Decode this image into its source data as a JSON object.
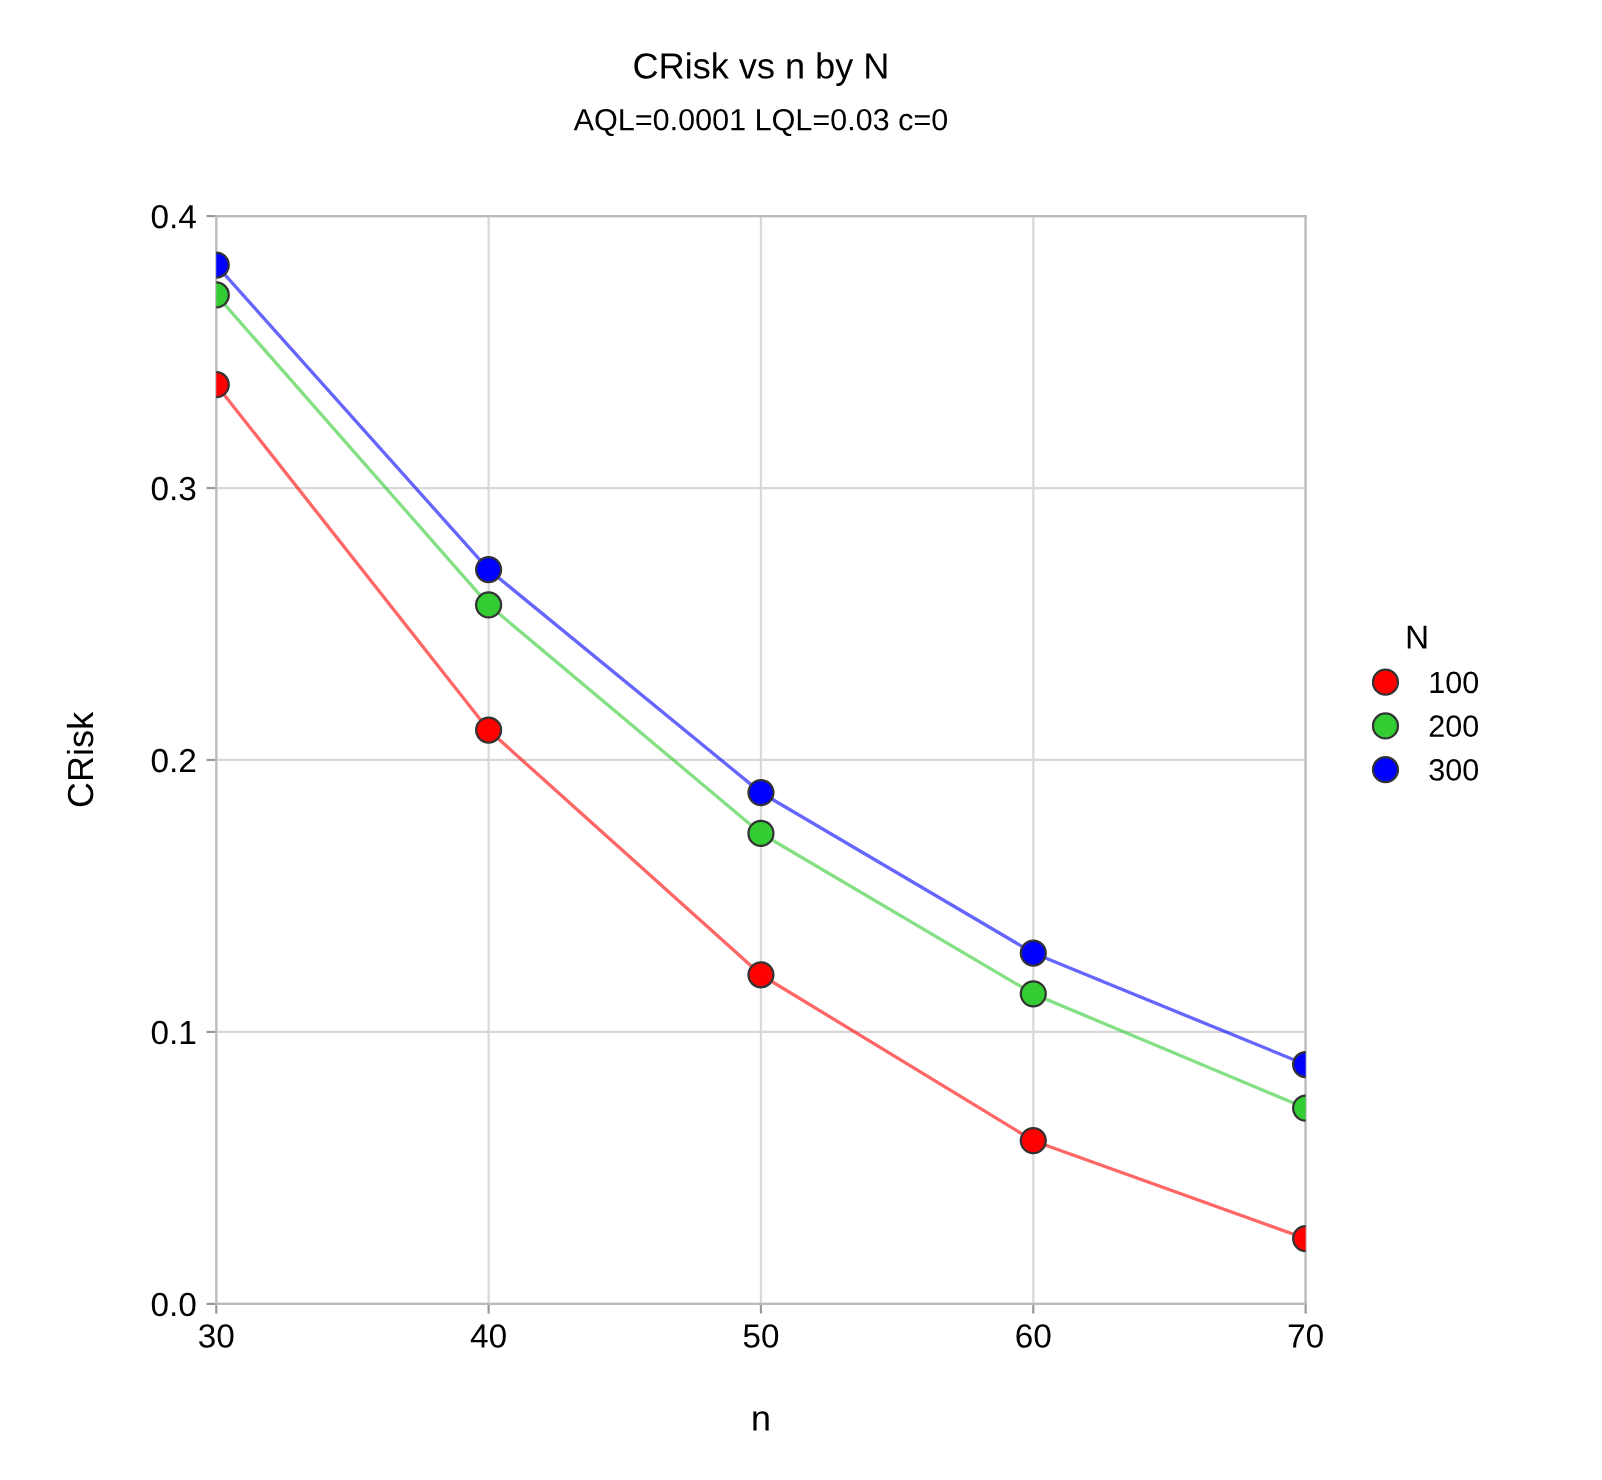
{
  "chart_data": {
    "type": "line",
    "title": "CRisk vs n by N",
    "subtitle": "AQL=0.0001 LQL=0.03 c=0",
    "xlabel": "n",
    "ylabel": "CRisk",
    "legend_title": "N",
    "x": [
      30,
      40,
      50,
      60,
      70
    ],
    "series": [
      {
        "name": "100",
        "color": "#ff0000",
        "values": [
          0.338,
          0.211,
          0.121,
          0.06,
          0.024
        ]
      },
      {
        "name": "200",
        "color": "#33cc33",
        "values": [
          0.371,
          0.257,
          0.173,
          0.114,
          0.072
        ]
      },
      {
        "name": "300",
        "color": "#0000ff",
        "values": [
          0.382,
          0.27,
          0.188,
          0.129,
          0.088
        ]
      }
    ],
    "xlim": [
      30,
      70
    ],
    "xticks": [
      30,
      40,
      50,
      60,
      70
    ],
    "ylim": [
      0,
      0.4
    ],
    "yticks": [
      {
        "value": 0,
        "label": "0.0"
      },
      0.1,
      0.2,
      0.3,
      0.4
    ],
    "grid": true,
    "legend": "right",
    "marker": "circle",
    "line_style": "solid"
  }
}
